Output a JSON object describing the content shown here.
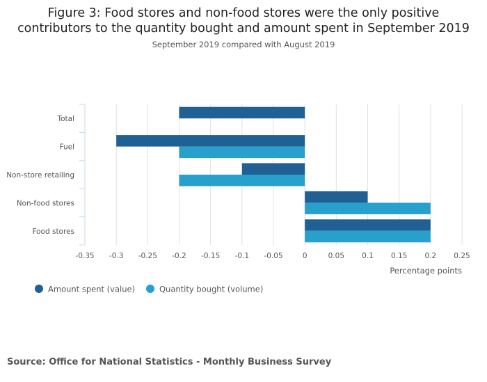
{
  "chart_data": {
    "type": "bar",
    "orientation": "horizontal",
    "title": "Figure 3: Food stores and non-food stores were the only positive contributors to the quantity bought and amount spent in September 2019",
    "title_lines": [
      "Figure 3: Food stores and non-food stores were the only positive",
      "contributors to the quantity bought and amount spent in September 2019"
    ],
    "subtitle": "September 2019 compared with August 2019",
    "categories": [
      "Total",
      "Fuel",
      "Non-store retailing",
      "Non-food stores",
      "Food stores"
    ],
    "series": [
      {
        "name": "Amount spent (value)",
        "color": "#206095",
        "values": [
          -0.2,
          -0.3,
          -0.1,
          0.1,
          0.2
        ]
      },
      {
        "name": "Quantity bought (volume)",
        "color": "#27a0cc",
        "values": [
          0,
          -0.2,
          -0.2,
          0.2,
          0.2
        ]
      }
    ],
    "xlabel": "Percentage points",
    "ylabel": "",
    "xlim": [
      -0.35,
      0.25
    ],
    "xticks": [
      "-0.35",
      "-0.3",
      "-0.25",
      "-0.2",
      "-0.15",
      "-0.1",
      "-0.05",
      "0",
      "0.05",
      "0.1",
      "0.15",
      "0.2",
      "0.25"
    ],
    "grid": true,
    "legend_position": "bottom-left"
  },
  "source": "Source: Office for National Statistics - Monthly Business Survey"
}
